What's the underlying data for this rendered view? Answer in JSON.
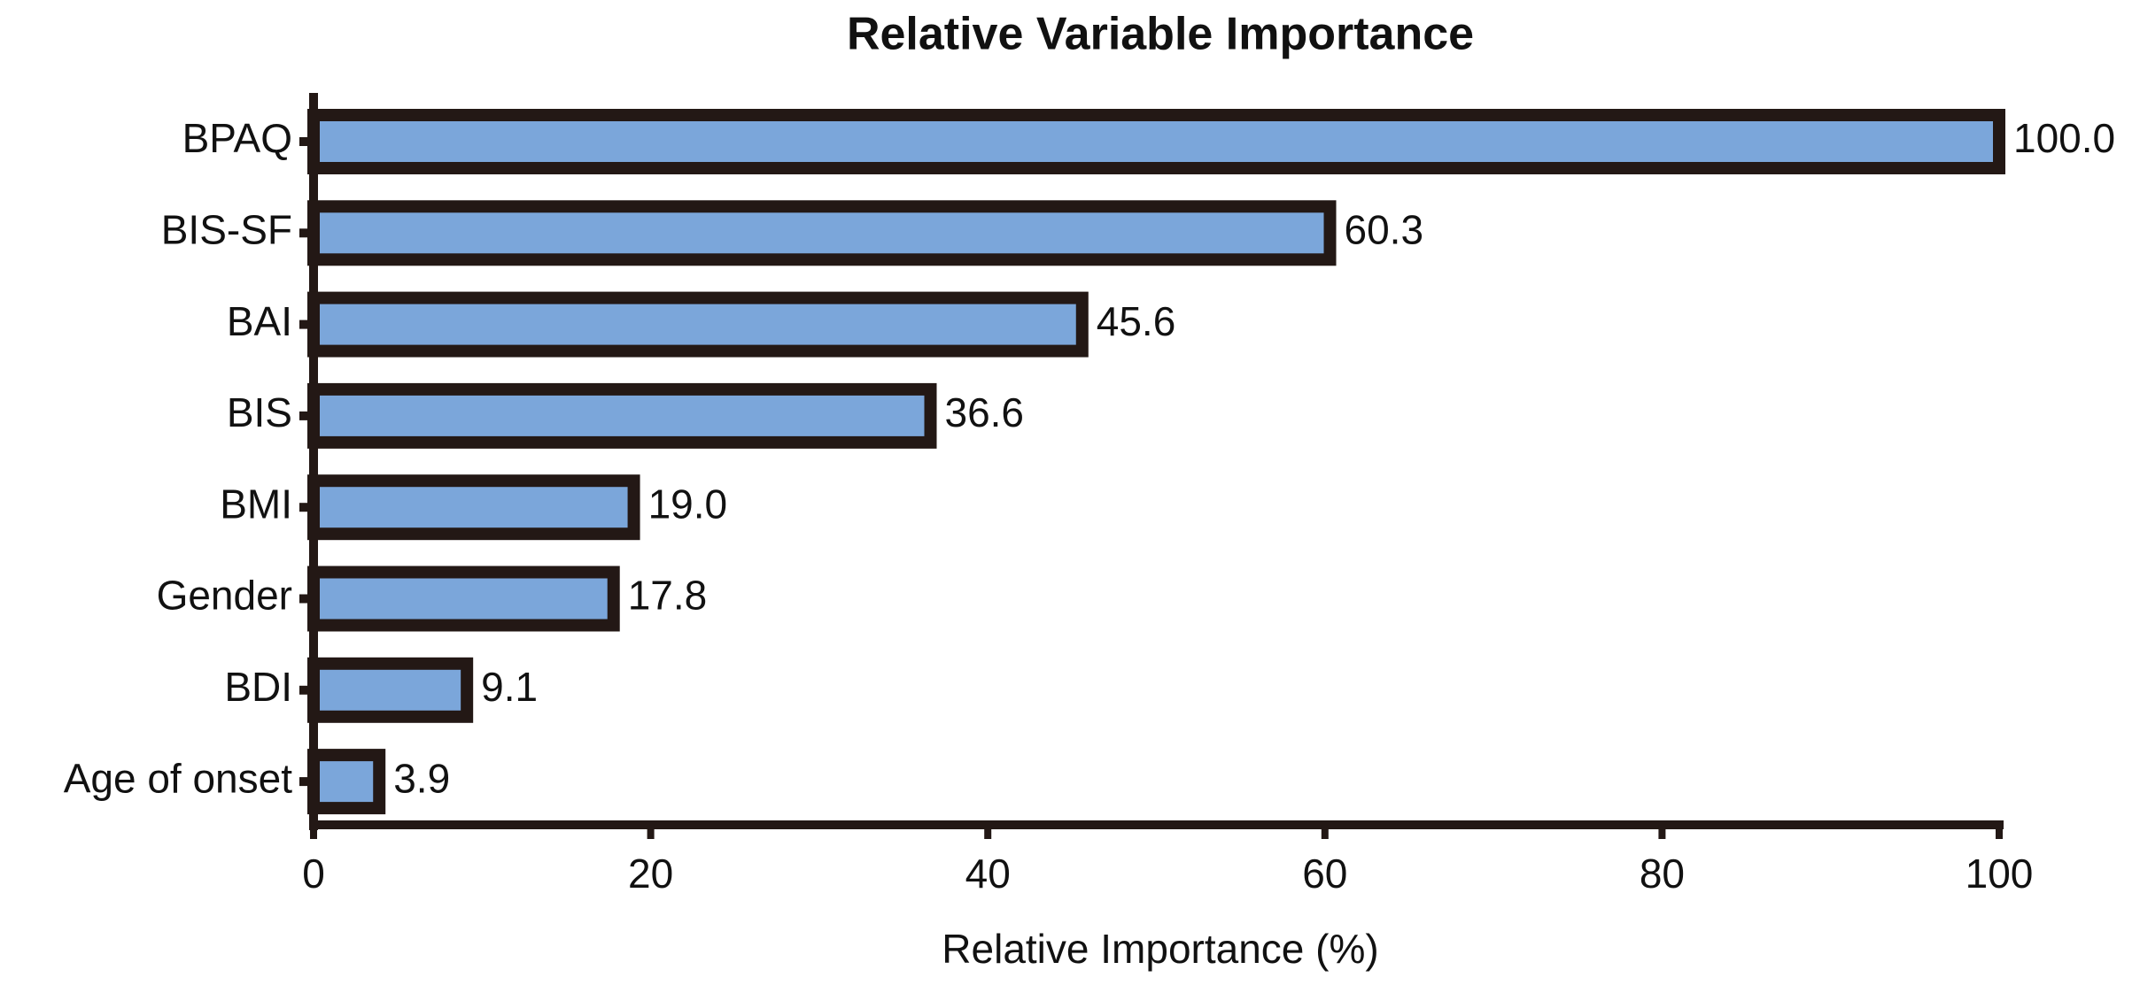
{
  "chart_data": {
    "type": "bar",
    "orientation": "horizontal",
    "title": "Relative Variable Importance",
    "xlabel": "Relative Importance (%)",
    "categories": [
      "BPAQ",
      "BIS-SF",
      "BAI",
      "BIS",
      "BMI",
      "Gender",
      "BDI",
      "Age of onset"
    ],
    "values": [
      100,
      60.3,
      45.6,
      36.6,
      19,
      17.8,
      9.1,
      3.9
    ],
    "value_labels": [
      "100.0",
      "60.3",
      "45.6",
      "36.6",
      "19.0",
      "17.8",
      "9.1",
      "3.9"
    ],
    "color": "#7ba6da",
    "edgecolor": "#231815",
    "xlim": [
      0,
      100
    ],
    "xticks": [
      0,
      20,
      40,
      60,
      80,
      100
    ],
    "grid": false
  }
}
